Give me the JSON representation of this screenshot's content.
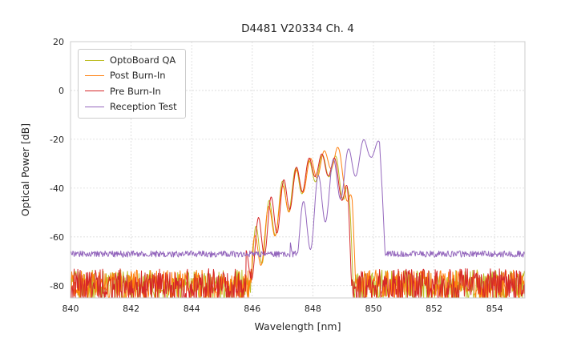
{
  "chart_data": {
    "type": "line",
    "title": "D4481 V20334 Ch. 4",
    "xlabel": "Wavelength [nm]",
    "ylabel": "Optical Power [dB]",
    "xlim": [
      840,
      855
    ],
    "ylim": [
      -85,
      20
    ],
    "xticks": [
      840,
      842,
      844,
      846,
      848,
      850,
      852,
      854
    ],
    "yticks": [
      20,
      0,
      -20,
      -40,
      -60,
      -80
    ],
    "grid": true,
    "legend_position": "upper-left",
    "series": [
      {
        "name": "OptoBoard QA",
        "color": "#bcbd22",
        "noise_floor": -80,
        "noise_amp": 6.5,
        "fringe_period": 0.44,
        "fringe_phase": 0.1,
        "envelope": [
          [
            845.85,
            -68
          ],
          [
            846.1,
            -56
          ],
          [
            846.5,
            -46
          ],
          [
            847.0,
            -37
          ],
          [
            847.5,
            -31
          ],
          [
            848.0,
            -28
          ],
          [
            848.4,
            -26
          ],
          [
            848.8,
            -27
          ],
          [
            849.1,
            -33
          ],
          [
            849.3,
            -55
          ],
          [
            849.38,
            -80
          ]
        ],
        "depth": [
          [
            845.85,
            22
          ],
          [
            846.5,
            20
          ],
          [
            847.2,
            15
          ],
          [
            848.0,
            10
          ],
          [
            848.6,
            9
          ],
          [
            849.0,
            14
          ],
          [
            849.3,
            30
          ],
          [
            849.38,
            10
          ]
        ]
      },
      {
        "name": "Post Burn-In",
        "color": "#ff7f0e",
        "noise_floor": -80,
        "noise_amp": 6.5,
        "fringe_period": 0.46,
        "fringe_phase": 0.25,
        "envelope": [
          [
            846.0,
            -62
          ],
          [
            846.4,
            -50
          ],
          [
            847.0,
            -39
          ],
          [
            847.5,
            -32
          ],
          [
            848.0,
            -27
          ],
          [
            848.5,
            -24
          ],
          [
            848.8,
            -23
          ],
          [
            849.05,
            -26
          ],
          [
            849.3,
            -45
          ],
          [
            849.42,
            -75
          ]
        ],
        "depth": [
          [
            846.0,
            20
          ],
          [
            846.8,
            16
          ],
          [
            847.6,
            12
          ],
          [
            848.3,
            9
          ],
          [
            848.8,
            8
          ],
          [
            849.2,
            18
          ],
          [
            849.42,
            12
          ]
        ]
      },
      {
        "name": "Pre Burn-In",
        "color": "#d62728",
        "noise_floor": -80,
        "noise_amp": 7,
        "fringe_period": 0.42,
        "fringe_phase": 0.0,
        "envelope": [
          [
            845.8,
            -65
          ],
          [
            846.2,
            -52
          ],
          [
            846.7,
            -42
          ],
          [
            847.2,
            -34
          ],
          [
            847.7,
            -29
          ],
          [
            848.1,
            -26
          ],
          [
            848.5,
            -26
          ],
          [
            848.9,
            -29
          ],
          [
            849.15,
            -40
          ],
          [
            849.3,
            -70
          ]
        ],
        "depth": [
          [
            845.8,
            18
          ],
          [
            846.6,
            20
          ],
          [
            847.4,
            14
          ],
          [
            848.1,
            9
          ],
          [
            848.6,
            9
          ],
          [
            849.0,
            15
          ],
          [
            849.3,
            20
          ]
        ]
      },
      {
        "name": "Reception Test",
        "color": "#9467bd",
        "noise_floor": -67,
        "noise_amp": 1.3,
        "fringe_period": 0.5,
        "fringe_phase": 0.3,
        "envelope": [
          [
            847.25,
            -58
          ],
          [
            847.7,
            -45
          ],
          [
            848.1,
            -36
          ],
          [
            848.5,
            -30
          ],
          [
            848.9,
            -26
          ],
          [
            849.3,
            -23
          ],
          [
            849.7,
            -20
          ],
          [
            850.0,
            -19
          ],
          [
            850.2,
            -21
          ],
          [
            850.3,
            -40
          ],
          [
            850.4,
            -66
          ]
        ],
        "depth": [
          [
            847.25,
            18
          ],
          [
            848.0,
            26
          ],
          [
            848.5,
            22
          ],
          [
            849.0,
            18
          ],
          [
            849.5,
            12
          ],
          [
            849.9,
            8
          ],
          [
            850.2,
            10
          ],
          [
            850.4,
            5
          ]
        ]
      }
    ]
  }
}
